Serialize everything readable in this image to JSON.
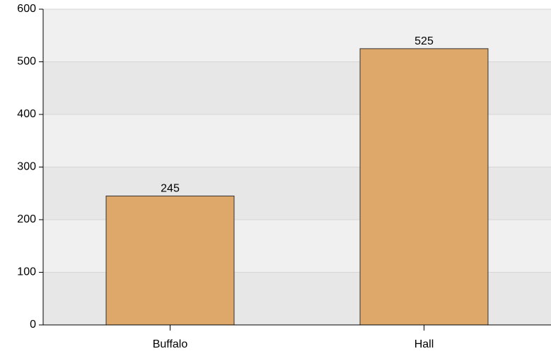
{
  "chart_data": {
    "type": "bar",
    "categories": [
      "Buffalo",
      "Hall"
    ],
    "values": [
      245,
      525
    ],
    "color": "#dda86a",
    "ylim": [
      0,
      600
    ],
    "yticks": [
      0,
      100,
      200,
      300,
      400,
      500,
      600
    ],
    "grid": true
  }
}
